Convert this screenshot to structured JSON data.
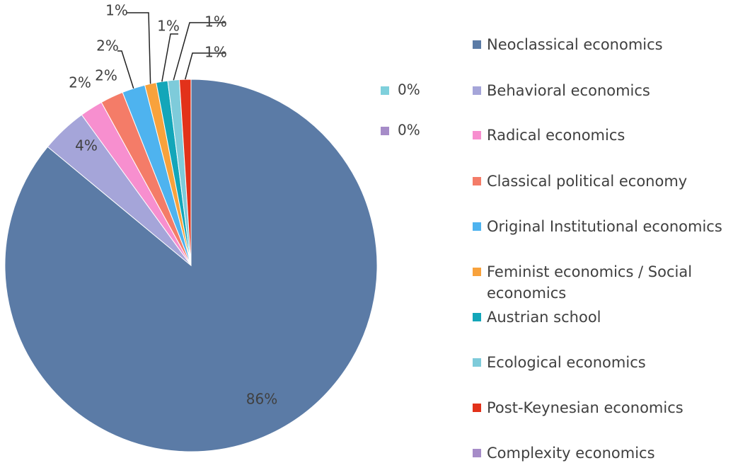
{
  "chart_data": {
    "type": "pie",
    "categories": [
      "Neoclassical economics",
      "Behavioral economics",
      "Radical economics",
      "Classical political economy",
      "Original Institutional economics",
      "Feminist economics / Social economics",
      "Austrian school",
      "Ecological economics",
      "Post-Keynesian economics",
      "Complexity economics",
      null
    ],
    "values": [
      86,
      4,
      2,
      2,
      2,
      1,
      1,
      1,
      1,
      0,
      0
    ],
    "value_labels": [
      "86%",
      "4%",
      "2%",
      "2%",
      "2%",
      "1%",
      "1%",
      "1%",
      "1%",
      "0%",
      "0%"
    ],
    "colors": [
      "#5b7ba6",
      "#a5a5d9",
      "#f78fcf",
      "#f47c68",
      "#4eb3ef",
      "#f8a23c",
      "#13a6b9",
      "#7ecbda",
      "#e2321a",
      "#a68cc8",
      "#7fd0dc"
    ],
    "legend": "right"
  }
}
